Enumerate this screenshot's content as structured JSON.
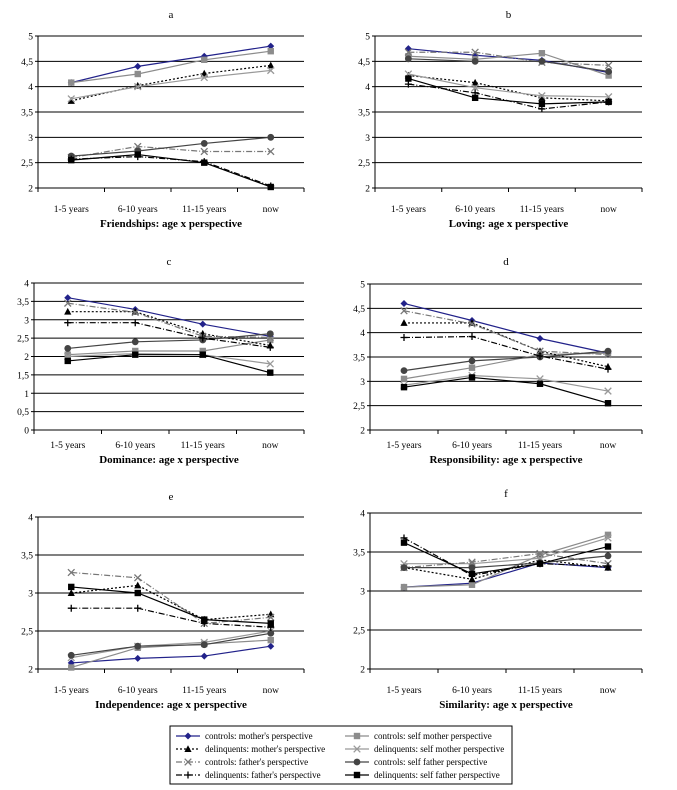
{
  "legend": [
    {
      "label": "controls: mother's perspective",
      "color": "#22228a",
      "dash": "solid",
      "marker": "diamond"
    },
    {
      "label": "controls: self mother perspective",
      "color": "#8c8c8c",
      "dash": "solid",
      "marker": "square"
    },
    {
      "label": "delinquents: mother's perspective",
      "color": "#000000",
      "dash": "dotted",
      "marker": "triangle"
    },
    {
      "label": "delinquents: self mother perspective",
      "color": "#999999",
      "dash": "solid",
      "marker": "x"
    },
    {
      "label": "controls: father's perspective",
      "color": "#777777",
      "dash": "dashdot",
      "marker": "x"
    },
    {
      "label": "controls: self father perspective",
      "color": "#444444",
      "dash": "solid",
      "marker": "circle"
    },
    {
      "label": "delinquents: father's perspective",
      "color": "#000000",
      "dash": "dashdot",
      "marker": "plus"
    },
    {
      "label": "delinquents: self father perspective",
      "color": "#000000",
      "dash": "solid",
      "marker": "square"
    }
  ],
  "chart_data": [
    {
      "type": "line",
      "letter": "a",
      "title": "Friendships: age x perspective",
      "categories": [
        "1-5 years",
        "6-10 years",
        "11-15 years",
        "now"
      ],
      "ylim": [
        2,
        5
      ],
      "yticks": [
        "2",
        "2,5",
        "3",
        "3,5",
        "4",
        "4,5",
        "5"
      ],
      "series": [
        {
          "name": "controls: mother's perspective",
          "values": [
            4.08,
            4.4,
            4.6,
            4.8
          ]
        },
        {
          "name": "controls: self mother perspective",
          "values": [
            4.08,
            4.25,
            4.53,
            4.7
          ]
        },
        {
          "name": "delinquents: mother's perspective",
          "values": [
            3.72,
            4.02,
            4.26,
            4.42
          ]
        },
        {
          "name": "delinquents: self mother perspective",
          "values": [
            3.76,
            4.0,
            4.18,
            4.32
          ]
        },
        {
          "name": "controls: father's perspective",
          "values": [
            2.6,
            2.82,
            2.72,
            2.72
          ]
        },
        {
          "name": "controls: self father perspective",
          "values": [
            2.63,
            2.73,
            2.88,
            3.0
          ]
        },
        {
          "name": "delinquents: father's perspective",
          "values": [
            2.57,
            2.62,
            2.52,
            2.04
          ]
        },
        {
          "name": "delinquents: self father perspective",
          "values": [
            2.55,
            2.66,
            2.5,
            2.02
          ]
        }
      ]
    },
    {
      "type": "line",
      "letter": "b",
      "title": "Loving: age x perspective",
      "categories": [
        "1-5 years",
        "6-10 years",
        "11-15 years",
        "now"
      ],
      "ylim": [
        2,
        5
      ],
      "yticks": [
        "2",
        "2,5",
        "3",
        "3,5",
        "4",
        "4,5",
        "5"
      ],
      "series": [
        {
          "name": "controls: mother's perspective",
          "values": [
            4.75,
            4.62,
            4.52,
            4.28
          ]
        },
        {
          "name": "controls: self mother perspective",
          "values": [
            4.6,
            4.54,
            4.66,
            4.22
          ]
        },
        {
          "name": "delinquents: mother's perspective",
          "values": [
            4.22,
            4.08,
            3.78,
            3.72
          ]
        },
        {
          "name": "delinquents: self mother perspective",
          "values": [
            4.25,
            3.98,
            3.82,
            3.8
          ]
        },
        {
          "name": "controls: father's perspective",
          "values": [
            4.68,
            4.68,
            4.48,
            4.42
          ]
        },
        {
          "name": "controls: self father perspective",
          "values": [
            4.55,
            4.5,
            4.5,
            4.3
          ]
        },
        {
          "name": "delinquents: father's perspective",
          "values": [
            4.05,
            3.88,
            3.56,
            3.7
          ]
        },
        {
          "name": "delinquents: self father perspective",
          "values": [
            4.16,
            3.78,
            3.66,
            3.7
          ]
        }
      ]
    },
    {
      "type": "line",
      "letter": "c",
      "title": "Dominance: age x perspective",
      "categories": [
        "1-5 years",
        "6-10 years",
        "11-15 years",
        "now"
      ],
      "ylim": [
        0,
        4
      ],
      "yticks": [
        "0",
        "0,5",
        "1",
        "1,5",
        "2",
        "2,5",
        "3",
        "3,5",
        "4"
      ],
      "series": [
        {
          "name": "controls: mother's perspective",
          "values": [
            3.6,
            3.28,
            2.88,
            2.55
          ]
        },
        {
          "name": "controls: self mother perspective",
          "values": [
            2.05,
            2.15,
            2.15,
            2.45
          ]
        },
        {
          "name": "delinquents: mother's perspective",
          "values": [
            3.22,
            3.22,
            2.62,
            2.3
          ]
        },
        {
          "name": "delinquents: self mother perspective",
          "values": [
            2.0,
            2.08,
            2.05,
            1.8
          ]
        },
        {
          "name": "controls: father's perspective",
          "values": [
            3.45,
            3.2,
            2.55,
            2.52
          ]
        },
        {
          "name": "controls: self father perspective",
          "values": [
            2.22,
            2.4,
            2.45,
            2.62
          ]
        },
        {
          "name": "delinquents: father's perspective",
          "values": [
            2.92,
            2.92,
            2.5,
            2.25
          ]
        },
        {
          "name": "delinquents: self father perspective",
          "values": [
            1.88,
            2.05,
            2.05,
            1.56
          ]
        }
      ]
    },
    {
      "type": "line",
      "letter": "d",
      "title": "Responsibility: age x perspective",
      "categories": [
        "1-5 years",
        "6-10 years",
        "11-15 years",
        "now"
      ],
      "ylim": [
        2,
        5
      ],
      "yticks": [
        "2",
        "2,5",
        "3",
        "3,5",
        "4",
        "4,5",
        "5"
      ],
      "series": [
        {
          "name": "controls: mother's perspective",
          "values": [
            4.6,
            4.25,
            3.88,
            3.58
          ]
        },
        {
          "name": "controls: self mother perspective",
          "values": [
            3.05,
            3.28,
            3.55,
            3.58
          ]
        },
        {
          "name": "delinquents: mother's perspective",
          "values": [
            4.2,
            4.2,
            3.62,
            3.3
          ]
        },
        {
          "name": "delinquents: self mother perspective",
          "values": [
            2.92,
            3.12,
            3.05,
            2.8
          ]
        },
        {
          "name": "controls: father's perspective",
          "values": [
            4.45,
            4.18,
            3.62,
            3.55
          ]
        },
        {
          "name": "controls: self father perspective",
          "values": [
            3.22,
            3.42,
            3.5,
            3.62
          ]
        },
        {
          "name": "delinquents: father's perspective",
          "values": [
            3.9,
            3.92,
            3.52,
            3.25
          ]
        },
        {
          "name": "delinquents: self father perspective",
          "values": [
            2.88,
            3.08,
            2.95,
            2.55
          ]
        }
      ]
    },
    {
      "type": "line",
      "letter": "e",
      "title": "Independence: age x perspective",
      "categories": [
        "1-5 years",
        "6-10 years",
        "11-15 years",
        "now"
      ],
      "ylim": [
        2,
        4
      ],
      "yticks": [
        "2",
        "2,5",
        "3",
        "3,5",
        "4"
      ],
      "series": [
        {
          "name": "controls: mother's perspective",
          "values": [
            2.08,
            2.14,
            2.17,
            2.3
          ]
        },
        {
          "name": "controls: self mother perspective",
          "values": [
            2.02,
            2.28,
            2.33,
            2.38
          ]
        },
        {
          "name": "delinquents: mother's perspective",
          "values": [
            3.0,
            3.1,
            2.65,
            2.72
          ]
        },
        {
          "name": "delinquents: self mother perspective",
          "values": [
            2.15,
            2.3,
            2.35,
            2.5
          ]
        },
        {
          "name": "controls: father's perspective",
          "values": [
            3.27,
            3.2,
            2.6,
            2.68
          ]
        },
        {
          "name": "controls: self father perspective",
          "values": [
            2.18,
            2.3,
            2.32,
            2.47
          ]
        },
        {
          "name": "delinquents: father's perspective",
          "values": [
            2.8,
            2.8,
            2.6,
            2.55
          ]
        },
        {
          "name": "delinquents: self father perspective",
          "values": [
            3.08,
            3.0,
            2.65,
            2.6
          ]
        }
      ]
    },
    {
      "type": "line",
      "letter": "f",
      "title": "Similarity: age x perspective",
      "categories": [
        "1-5 years",
        "6-10 years",
        "11-15 years",
        "now"
      ],
      "ylim": [
        2,
        4
      ],
      "yticks": [
        "2",
        "2,5",
        "3",
        "3,5",
        "4"
      ],
      "series": [
        {
          "name": "controls: mother's perspective",
          "values": [
            3.05,
            3.1,
            3.36,
            3.3
          ]
        },
        {
          "name": "controls: self mother perspective",
          "values": [
            3.05,
            3.08,
            3.46,
            3.72
          ]
        },
        {
          "name": "delinquents: mother's perspective",
          "values": [
            3.3,
            3.15,
            3.4,
            3.3
          ]
        },
        {
          "name": "delinquents: self mother perspective",
          "values": [
            3.35,
            3.35,
            3.42,
            3.68
          ]
        },
        {
          "name": "controls: father's perspective",
          "values": [
            3.3,
            3.37,
            3.48,
            3.35
          ]
        },
        {
          "name": "controls: self father perspective",
          "values": [
            3.3,
            3.3,
            3.36,
            3.45
          ]
        },
        {
          "name": "delinquents: father's perspective",
          "values": [
            3.68,
            3.2,
            3.35,
            3.32
          ]
        },
        {
          "name": "delinquents: self father perspective",
          "values": [
            3.62,
            3.22,
            3.35,
            3.57
          ]
        }
      ]
    }
  ]
}
